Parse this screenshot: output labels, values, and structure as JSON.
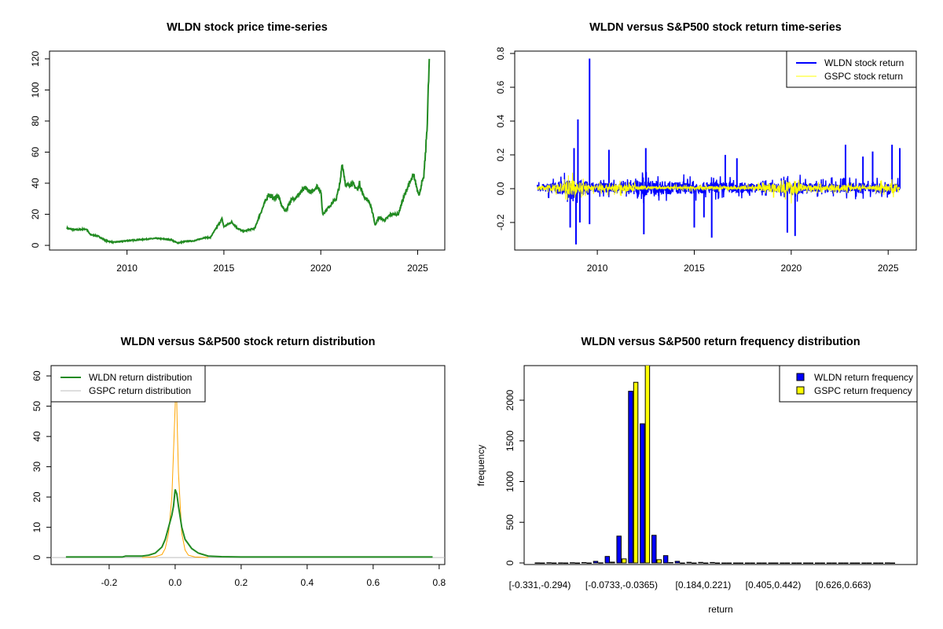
{
  "chart_data": [
    {
      "type": "line",
      "title": "WLDN stock price time-series",
      "xlabel": "",
      "ylabel": "",
      "xlim": [
        2006,
        2026.4
      ],
      "ylim": [
        -3,
        125
      ],
      "xticks": [
        "2010",
        "2015",
        "2020",
        "2025"
      ],
      "yticks": [
        "0",
        "20",
        "40",
        "60",
        "80",
        "100",
        "120"
      ],
      "color": "#228B22",
      "series": [
        {
          "name": "WLDN price",
          "points": [
            [
              2006.9,
              11
            ],
            [
              2007.3,
              10
            ],
            [
              2007.9,
              10.5
            ],
            [
              2008.1,
              7
            ],
            [
              2008.5,
              6
            ],
            [
              2008.9,
              3
            ],
            [
              2009.3,
              2
            ],
            [
              2009.7,
              2.5
            ],
            [
              2010,
              3
            ],
            [
              2011,
              4
            ],
            [
              2011.5,
              4.5
            ],
            [
              2012,
              4
            ],
            [
              2012.3,
              3.5
            ],
            [
              2012.6,
              1.5
            ],
            [
              2013,
              2.5
            ],
            [
              2013.5,
              3
            ],
            [
              2014,
              5
            ],
            [
              2014.3,
              5
            ],
            [
              2014.5,
              9
            ],
            [
              2014.9,
              17
            ],
            [
              2015.0,
              12
            ],
            [
              2015.4,
              15
            ],
            [
              2015.7,
              11
            ],
            [
              2016.0,
              9
            ],
            [
              2016.3,
              10
            ],
            [
              2016.6,
              11
            ],
            [
              2016.8,
              18
            ],
            [
              2017.1,
              27
            ],
            [
              2017.3,
              33
            ],
            [
              2017.6,
              30
            ],
            [
              2017.8,
              32
            ],
            [
              2018.0,
              25
            ],
            [
              2018.2,
              22
            ],
            [
              2018.4,
              28
            ],
            [
              2018.8,
              32
            ],
            [
              2019.2,
              37
            ],
            [
              2019.5,
              34
            ],
            [
              2019.8,
              38
            ],
            [
              2020.0,
              35
            ],
            [
              2020.1,
              20
            ],
            [
              2020.5,
              26
            ],
            [
              2020.8,
              30
            ],
            [
              2021.0,
              40
            ],
            [
              2021.1,
              53
            ],
            [
              2021.3,
              38
            ],
            [
              2021.6,
              40
            ],
            [
              2021.9,
              36
            ],
            [
              2022.0,
              40
            ],
            [
              2022.2,
              32
            ],
            [
              2022.5,
              28
            ],
            [
              2022.7,
              20
            ],
            [
              2022.8,
              13
            ],
            [
              2023.0,
              18
            ],
            [
              2023.3,
              16
            ],
            [
              2023.6,
              20
            ],
            [
              2024.0,
              20
            ],
            [
              2024.2,
              28
            ],
            [
              2024.5,
              38
            ],
            [
              2024.8,
              45
            ],
            [
              2025.0,
              35
            ],
            [
              2025.1,
              33
            ],
            [
              2025.2,
              40
            ],
            [
              2025.3,
              42
            ],
            [
              2025.4,
              58
            ],
            [
              2025.5,
              80
            ],
            [
              2025.6,
              120
            ]
          ]
        }
      ]
    },
    {
      "type": "line",
      "title": "WLDN versus S&P500 stock return time-series",
      "xlabel": "",
      "ylabel": "",
      "xlim": [
        2005.74,
        2026.45
      ],
      "ylim": [
        -0.363,
        0.814
      ],
      "xticks": [
        "2010",
        "2015",
        "2020",
        "2025"
      ],
      "yticks": [
        "-0.2",
        "0.0",
        "0.2",
        "0.4",
        "0.6",
        "0.8"
      ],
      "legend": {
        "position": "top-right",
        "entries": [
          "WLDN stock return",
          "GSPC stock return"
        ]
      },
      "series": [
        {
          "name": "WLDN stock return",
          "color": "#0000FF",
          "range": [
            2006.9,
            2025.6
          ],
          "spikes": [
            [
              2008.6,
              -0.23
            ],
            [
              2008.8,
              0.24
            ],
            [
              2008.9,
              -0.33
            ],
            [
              2009.0,
              0.41
            ],
            [
              2009.1,
              -0.2
            ],
            [
              2009.6,
              0.77
            ],
            [
              2009.6,
              -0.21
            ],
            [
              2010.6,
              0.23
            ],
            [
              2012.4,
              -0.27
            ],
            [
              2012.5,
              0.24
            ],
            [
              2015.0,
              -0.23
            ],
            [
              2015.5,
              -0.17
            ],
            [
              2015.9,
              -0.29
            ],
            [
              2016.6,
              0.2
            ],
            [
              2017.2,
              0.18
            ],
            [
              2019.8,
              -0.26
            ],
            [
              2020.2,
              -0.28
            ],
            [
              2022.8,
              0.26
            ],
            [
              2023.7,
              0.19
            ],
            [
              2024.2,
              0.22
            ],
            [
              2025.2,
              0.26
            ],
            [
              2025.6,
              0.24
            ]
          ],
          "envelope": [
            [
              2006.9,
              0.04
            ],
            [
              2008.5,
              0.1
            ],
            [
              2009.5,
              0.09
            ],
            [
              2010.5,
              0.06
            ],
            [
              2012.5,
              0.1
            ],
            [
              2014.5,
              0.08
            ],
            [
              2017,
              0.07
            ],
            [
              2019,
              0.05
            ],
            [
              2020.2,
              0.09
            ],
            [
              2021,
              0.06
            ],
            [
              2023,
              0.07
            ],
            [
              2025.6,
              0.06
            ]
          ]
        },
        {
          "name": "GSPC stock return",
          "color": "#FFFF00",
          "range": [
            2006.9,
            2025.6
          ],
          "envelope": [
            [
              2006.9,
              0.015
            ],
            [
              2008.8,
              0.1
            ],
            [
              2009.5,
              0.04
            ],
            [
              2011.6,
              0.05
            ],
            [
              2012.5,
              0.02
            ],
            [
              2018,
              0.025
            ],
            [
              2020.2,
              0.1
            ],
            [
              2020.8,
              0.03
            ],
            [
              2022.5,
              0.04
            ],
            [
              2024,
              0.02
            ],
            [
              2025.3,
              0.07
            ],
            [
              2025.6,
              0.02
            ]
          ]
        }
      ]
    },
    {
      "type": "line",
      "title": "WLDN versus S&P500 stock return distribution",
      "xlabel": "",
      "ylabel": "",
      "xlim": [
        -0.376,
        0.817
      ],
      "ylim": [
        -2.3,
        63.4
      ],
      "xticks": [
        "-0.2",
        "0.0",
        "0.2",
        "0.4",
        "0.6",
        "0.8"
      ],
      "yticks": [
        "0",
        "10",
        "20",
        "30",
        "40",
        "50",
        "60"
      ],
      "legend": {
        "position": "top-left",
        "entries": [
          "WLDN return distribution",
          "GSPC return distribution"
        ]
      },
      "series": [
        {
          "name": "WLDN return distribution",
          "color": "#228B22",
          "points": [
            [
              -0.331,
              0.2
            ],
            [
              -0.16,
              0.2
            ],
            [
              -0.15,
              0.5
            ],
            [
              -0.1,
              0.5
            ],
            [
              -0.08,
              0.8
            ],
            [
              -0.06,
              1.5
            ],
            [
              -0.04,
              3.5
            ],
            [
              -0.03,
              6
            ],
            [
              -0.02,
              10
            ],
            [
              -0.01,
              14
            ],
            [
              -0.005,
              17
            ],
            [
              0,
              22.5
            ],
            [
              0.005,
              21
            ],
            [
              0.01,
              17
            ],
            [
              0.02,
              10
            ],
            [
              0.03,
              6
            ],
            [
              0.05,
              3
            ],
            [
              0.07,
              1.5
            ],
            [
              0.1,
              0.5
            ],
            [
              0.14,
              0.3
            ],
            [
              0.2,
              0.2
            ],
            [
              0.78,
              0.2
            ]
          ]
        },
        {
          "name": "GSPC return distribution",
          "color": "#FFA500",
          "points": [
            [
              -0.1,
              0
            ],
            [
              -0.06,
              0.3
            ],
            [
              -0.04,
              1
            ],
            [
              -0.03,
              3
            ],
            [
              -0.02,
              8
            ],
            [
              -0.01,
              20
            ],
            [
              -0.005,
              35
            ],
            [
              0,
              50
            ],
            [
              0.003,
              62
            ],
            [
              0.006,
              45
            ],
            [
              0.01,
              28
            ],
            [
              0.02,
              8
            ],
            [
              0.03,
              2.5
            ],
            [
              0.04,
              0.8
            ],
            [
              0.06,
              0.2
            ],
            [
              0.1,
              0
            ]
          ]
        }
      ]
    },
    {
      "type": "bar",
      "title": "WLDN versus S&P500 return frequency distribution",
      "xlabel": "return",
      "ylabel": "frequency",
      "ylim": [
        0,
        2425
      ],
      "yticks": [
        "0",
        "500",
        "1000",
        "1500",
        "2000"
      ],
      "bin_count": 31,
      "visible_labels": [
        {
          "bin": 0,
          "label": "[-0.331,-0.294)"
        },
        {
          "bin": 7,
          "label": "[-0.0733,-0.0365)"
        },
        {
          "bin": 14,
          "label": "[0.184,0.221)"
        },
        {
          "bin": 20,
          "label": "[0.405,0.442)"
        },
        {
          "bin": 26,
          "label": "[0.626,0.663)"
        }
      ],
      "legend": {
        "position": "top-right",
        "entries": [
          "WLDN return frequency",
          "GSPC return frequency"
        ]
      },
      "series": [
        {
          "name": "WLDN return frequency",
          "color": "#0000FF",
          "values": [
            1,
            3,
            1,
            3,
            5,
            20,
            80,
            330,
            2110,
            1710,
            340,
            90,
            20,
            8,
            7,
            6,
            0,
            0,
            0,
            0,
            0,
            0,
            0,
            0,
            0,
            0,
            0,
            0,
            0,
            0,
            1
          ]
        },
        {
          "name": "GSPC return frequency",
          "color": "#FFFF00",
          "values": [
            0,
            0,
            0,
            0,
            0,
            2,
            10,
            50,
            2220,
            2450,
            40,
            5,
            0,
            0,
            0,
            0,
            0,
            0,
            0,
            0,
            0,
            0,
            0,
            0,
            0,
            0,
            0,
            0,
            0,
            0,
            0
          ]
        }
      ]
    }
  ]
}
